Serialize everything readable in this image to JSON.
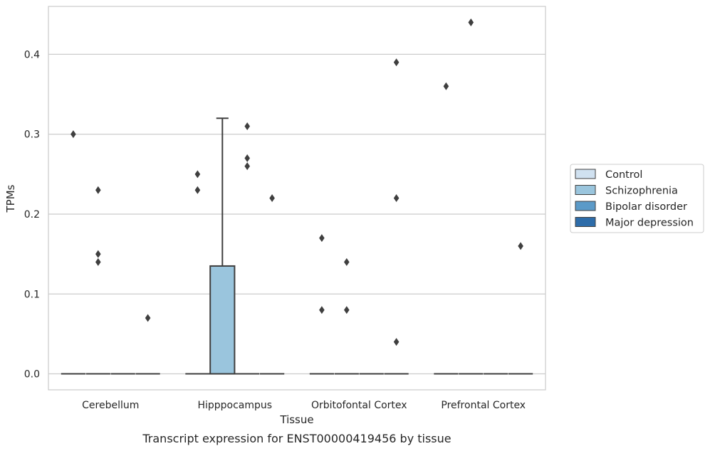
{
  "chart_data": {
    "type": "box",
    "xlabel": "Tissue",
    "ylabel": "TPMs",
    "caption": "Transcript expression for ENST00000419456 by tissue",
    "categories": [
      "Cerebellum",
      "Hipppocampus",
      "Orbitofontal Cortex",
      "Prefrontal Cortex"
    ],
    "ylim": [
      -0.02,
      0.46
    ],
    "yticks": [
      "0.0",
      "0.1",
      "0.2",
      "0.3",
      "0.4"
    ],
    "ytick_values": [
      0.0,
      0.1,
      0.2,
      0.3,
      0.4
    ],
    "grid": "horizontal",
    "legend_position": "right",
    "series": [
      {
        "name": "Control",
        "color": "#d0e1f0"
      },
      {
        "name": "Schizophrenia",
        "color": "#9ac5dd"
      },
      {
        "name": "Bipolar disorder",
        "color": "#5b9ac8"
      },
      {
        "name": "Major depression",
        "color": "#2d6ca9"
      }
    ],
    "boxes": [
      {
        "category": 0,
        "series": 0,
        "q1": 0.0,
        "median": 0.0,
        "q3": 0.0,
        "whisker_low": 0.0,
        "whisker_high": 0.0,
        "outliers": [
          0.3
        ]
      },
      {
        "category": 0,
        "series": 1,
        "q1": 0.0,
        "median": 0.0,
        "q3": 0.0,
        "whisker_low": 0.0,
        "whisker_high": 0.0,
        "outliers": [
          0.23,
          0.15,
          0.14
        ]
      },
      {
        "category": 0,
        "series": 2,
        "q1": 0.0,
        "median": 0.0,
        "q3": 0.0,
        "whisker_low": 0.0,
        "whisker_high": 0.0,
        "outliers": []
      },
      {
        "category": 0,
        "series": 3,
        "q1": 0.0,
        "median": 0.0,
        "q3": 0.0,
        "whisker_low": 0.0,
        "whisker_high": 0.0,
        "outliers": [
          0.07
        ]
      },
      {
        "category": 1,
        "series": 0,
        "q1": 0.0,
        "median": 0.0,
        "q3": 0.0,
        "whisker_low": 0.0,
        "whisker_high": 0.0,
        "outliers": [
          0.25,
          0.23
        ]
      },
      {
        "category": 1,
        "series": 1,
        "q1": 0.0,
        "median": 0.0,
        "q3": 0.135,
        "whisker_low": 0.0,
        "whisker_high": 0.32,
        "outliers": []
      },
      {
        "category": 1,
        "series": 2,
        "q1": 0.0,
        "median": 0.0,
        "q3": 0.0,
        "whisker_low": 0.0,
        "whisker_high": 0.0,
        "outliers": [
          0.31,
          0.27,
          0.26
        ]
      },
      {
        "category": 1,
        "series": 3,
        "q1": 0.0,
        "median": 0.0,
        "q3": 0.0,
        "whisker_low": 0.0,
        "whisker_high": 0.0,
        "outliers": [
          0.22
        ]
      },
      {
        "category": 2,
        "series": 0,
        "q1": 0.0,
        "median": 0.0,
        "q3": 0.0,
        "whisker_low": 0.0,
        "whisker_high": 0.0,
        "outliers": [
          0.17,
          0.08
        ]
      },
      {
        "category": 2,
        "series": 1,
        "q1": 0.0,
        "median": 0.0,
        "q3": 0.0,
        "whisker_low": 0.0,
        "whisker_high": 0.0,
        "outliers": [
          0.14,
          0.08
        ]
      },
      {
        "category": 2,
        "series": 2,
        "q1": 0.0,
        "median": 0.0,
        "q3": 0.0,
        "whisker_low": 0.0,
        "whisker_high": 0.0,
        "outliers": []
      },
      {
        "category": 2,
        "series": 3,
        "q1": 0.0,
        "median": 0.0,
        "q3": 0.0,
        "whisker_low": 0.0,
        "whisker_high": 0.0,
        "outliers": [
          0.39,
          0.22,
          0.04
        ]
      },
      {
        "category": 3,
        "series": 0,
        "q1": 0.0,
        "median": 0.0,
        "q3": 0.0,
        "whisker_low": 0.0,
        "whisker_high": 0.0,
        "outliers": [
          0.36
        ]
      },
      {
        "category": 3,
        "series": 1,
        "q1": 0.0,
        "median": 0.0,
        "q3": 0.0,
        "whisker_low": 0.0,
        "whisker_high": 0.0,
        "outliers": [
          0.44
        ]
      },
      {
        "category": 3,
        "series": 2,
        "q1": 0.0,
        "median": 0.0,
        "q3": 0.0,
        "whisker_low": 0.0,
        "whisker_high": 0.0,
        "outliers": []
      },
      {
        "category": 3,
        "series": 3,
        "q1": 0.0,
        "median": 0.0,
        "q3": 0.0,
        "whisker_low": 0.0,
        "whisker_high": 0.0,
        "outliers": [
          0.16
        ]
      }
    ]
  }
}
